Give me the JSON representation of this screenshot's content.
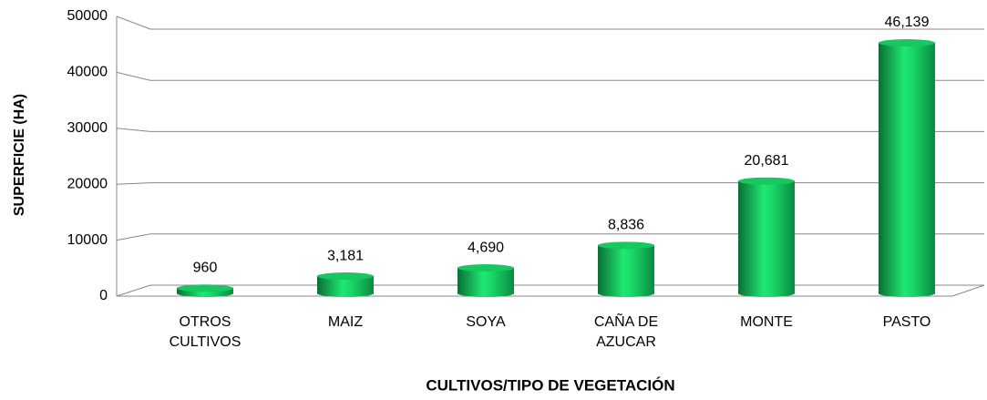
{
  "chart_data": {
    "type": "bar3d",
    "y_label": "SUPERFICIE (HA)",
    "x_label": "CULTIVOS/TIPO DE VEGETACIÓN",
    "categories": [
      "OTROS CULTIVOS",
      "MAIZ",
      "SOYA",
      "CAÑA DE AZUCAR",
      "MONTE",
      "PASTO"
    ],
    "values": [
      960,
      3181,
      4690,
      8836,
      20681,
      46139
    ],
    "value_labels": [
      "960",
      "3,181",
      "4,690",
      "8,836",
      "20,681",
      "46,139"
    ],
    "color": "#12c95f",
    "ylim": [
      0,
      50000
    ],
    "yticks": [
      0,
      10000,
      20000,
      30000,
      40000,
      50000
    ],
    "grid": true
  }
}
